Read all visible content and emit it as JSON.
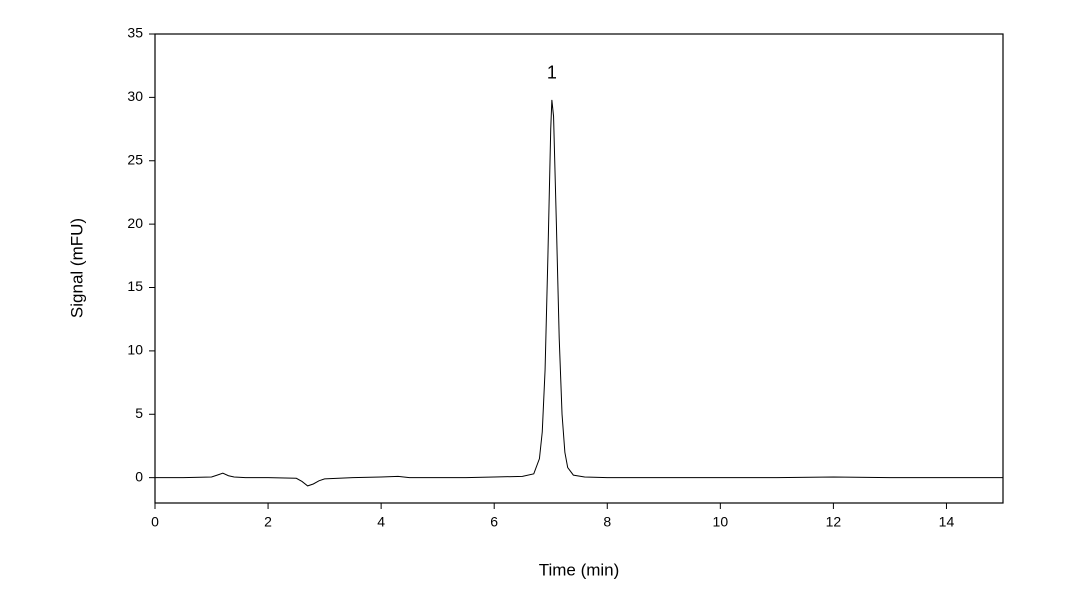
{
  "chart_data": {
    "type": "line",
    "x_label": "Time (min)",
    "y_label": "Signal (mFU)",
    "annotations": [
      {
        "text": "1"
      }
    ],
    "series": [
      {
        "color": "#000000",
        "x": [
          0,
          0.5,
          1.0,
          1.1,
          1.2,
          1.3,
          1.4,
          1.6,
          2.0,
          2.5,
          2.6,
          2.7,
          2.8,
          2.9,
          3.0,
          3.5,
          4.0,
          4.3,
          4.5,
          5,
          5.5,
          6,
          6.5,
          6.7,
          6.8,
          6.85,
          6.9,
          6.95,
          7.0,
          7.02,
          7.05,
          7.1,
          7.15,
          7.2,
          7.25,
          7.3,
          7.4,
          7.6,
          8,
          9,
          10,
          11,
          12,
          13,
          14,
          15
        ],
        "values": [
          0,
          0,
          0.05,
          0.2,
          0.35,
          0.15,
          0.05,
          0,
          0,
          -0.05,
          -0.3,
          -0.65,
          -0.5,
          -0.25,
          -0.1,
          0,
          0.05,
          0.1,
          0,
          0,
          0,
          0.05,
          0.1,
          0.3,
          1.5,
          3.6,
          8.5,
          17.5,
          27.5,
          29.8,
          28.5,
          20,
          11,
          5,
          2,
          0.8,
          0.2,
          0.05,
          0,
          0,
          0,
          0,
          0.05,
          0,
          0,
          0
        ]
      }
    ],
    "xlim": [
      0,
      15
    ],
    "xticks": [
      0,
      2,
      4,
      6,
      8,
      10,
      12,
      14
    ],
    "ylim": [
      -2,
      35
    ],
    "yticks": [
      0,
      5,
      10,
      15,
      20,
      25,
      30,
      35
    ]
  }
}
